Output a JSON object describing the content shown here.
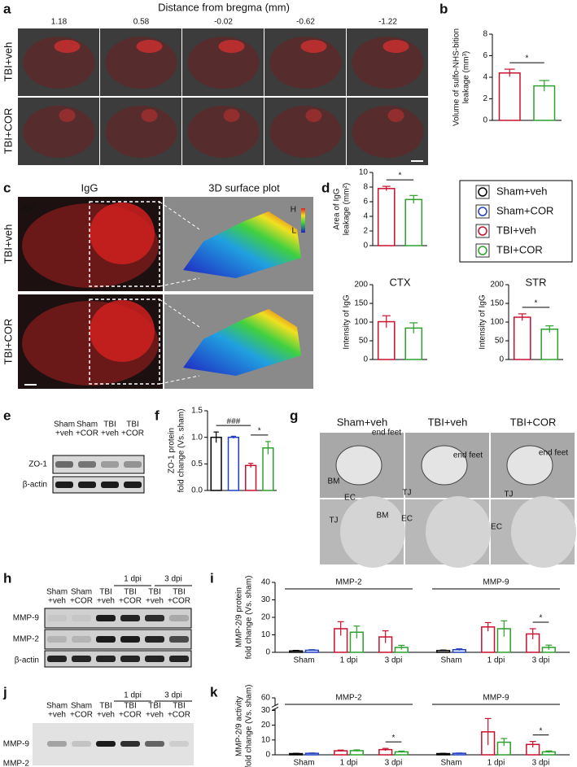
{
  "a": {
    "label": "a",
    "title": "Distance from bregma (mm)",
    "distances": [
      "1.18",
      "0.58",
      "-0.02",
      "-0.62",
      "-1.22"
    ],
    "rows": [
      "TBI+veh",
      "TBI+COR"
    ]
  },
  "b": {
    "label": "b",
    "chart_data": {
      "type": "bar",
      "ylabel": [
        "Volume of sulfo-NHS-bition",
        "leakage (mm³)"
      ],
      "ylim": [
        0,
        8
      ],
      "yticks": [
        0,
        2,
        4,
        6,
        8
      ],
      "values": [
        4.4,
        3.2
      ],
      "errors": [
        0.35,
        0.5
      ],
      "colors": [
        "#c8102e",
        "#2ca02c"
      ],
      "sig": [
        {
          "text": "*",
          "from": 0,
          "to": 1
        }
      ]
    }
  },
  "c": {
    "label": "c",
    "headers": [
      "IgG",
      "3D surface plot"
    ],
    "rows": [
      "TBI+veh",
      "TBI+COR"
    ],
    "stain": "IgG",
    "scale": [
      "H",
      "L"
    ]
  },
  "d": {
    "label": "d",
    "legend": {
      "names": [
        "Sham+veh",
        "Sham+COR",
        "TBI+veh",
        "TBI+COR"
      ],
      "colors": [
        "#000000",
        "#1f3fbf",
        "#c8102e",
        "#2ca02c"
      ]
    },
    "charts": [
      {
        "type": "bar",
        "ylabel": [
          "Area of IgG",
          "leakage (mm²)"
        ],
        "ylim": [
          0,
          10
        ],
        "yticks": [
          0,
          2,
          4,
          6,
          8,
          10
        ],
        "values": [
          7.8,
          6.3
        ],
        "errors": [
          0.3,
          0.55
        ],
        "colors": [
          "#c8102e",
          "#2ca02c"
        ],
        "sig": [
          {
            "text": "*",
            "from": 0,
            "to": 1
          }
        ]
      },
      {
        "type": "bar",
        "title": "CTX",
        "ylabel": [
          "Intensity of IgG"
        ],
        "ylim": [
          0,
          200
        ],
        "yticks": [
          0,
          50,
          100,
          150,
          200
        ],
        "values": [
          101,
          84
        ],
        "errors": [
          16,
          14
        ],
        "colors": [
          "#c8102e",
          "#2ca02c"
        ]
      },
      {
        "type": "bar",
        "title": "STR",
        "ylabel": [
          "Intensity of IgG"
        ],
        "ylim": [
          0,
          200
        ],
        "yticks": [
          0,
          50,
          100,
          150,
          200
        ],
        "values": [
          113,
          81
        ],
        "errors": [
          9,
          9
        ],
        "colors": [
          "#c8102e",
          "#2ca02c"
        ],
        "sig": [
          {
            "text": "*",
            "from": 0,
            "to": 1
          }
        ]
      }
    ]
  },
  "e": {
    "label": "e",
    "lanes": [
      [
        "Sham",
        "+veh"
      ],
      [
        "Sham",
        "+COR"
      ],
      [
        "TBI",
        "+veh"
      ],
      [
        "TBI",
        "+COR"
      ]
    ],
    "rows": [
      "ZO-1",
      "β-actin"
    ]
  },
  "f": {
    "label": "f",
    "chart_data": {
      "type": "bar",
      "ylabel": [
        "ZO-1 protein",
        "fold change (Vs. sham)"
      ],
      "ylim": [
        0,
        1.5
      ],
      "yticks": [
        {
          "value": 0,
          "label": "0.0"
        },
        0.5,
        {
          "value": 1,
          "label": "1.0"
        },
        1.5
      ],
      "values": [
        1.0,
        1.0,
        0.47,
        0.8
      ],
      "errors": [
        0.1,
        0.02,
        0.04,
        0.12
      ],
      "colors": [
        "#000000",
        "#1f3fbf",
        "#c8102e",
        "#2ca02c"
      ],
      "sig": [
        {
          "text": "###",
          "from": 0,
          "to": 2
        },
        {
          "text": "*",
          "from": 2,
          "to": 3
        }
      ]
    }
  },
  "g": {
    "label": "g",
    "columns": [
      "Sham+veh",
      "TBI+veh",
      "TBI+COR"
    ],
    "annotations": [
      [
        "end feet",
        "BM",
        "EC",
        "TJ"
      ],
      [
        "end feet",
        "TJ",
        "BM",
        "EC"
      ],
      [
        "end feet",
        "TJ",
        "EC"
      ]
    ]
  },
  "h": {
    "label": "h",
    "timepoints": [
      "1 dpi",
      "3 dpi"
    ],
    "lanes": [
      [
        "Sham",
        "+veh"
      ],
      [
        "Sham",
        "+COR"
      ],
      [
        "TBI",
        "+veh"
      ],
      [
        "TBI",
        "+COR"
      ],
      [
        "TBI",
        "+veh"
      ],
      [
        "TBI",
        "+COR"
      ]
    ],
    "rows": [
      "MMP-9",
      "MMP-2",
      "β-actin"
    ]
  },
  "i": {
    "label": "i",
    "chart_data": {
      "type": "grouped-bar",
      "ylabel": [
        "MMP-2/9 protein",
        "fold change (Vs. sham)"
      ],
      "ylim": [
        0,
        40
      ],
      "yticks": [
        0,
        10,
        20,
        30,
        40
      ],
      "colors": [
        "#000000",
        "#1f3fbf",
        "#c8102e",
        "#2ca02c",
        "#c8102e",
        "#2ca02c"
      ],
      "groups": [
        {
          "name": "MMP-2",
          "categories": [
            "Sham",
            "1 dpi",
            "3 dpi"
          ],
          "values": [
            0.8,
            1.2,
            13.5,
            11.5,
            8.8,
            2.8
          ],
          "errors": [
            0.3,
            0.3,
            4,
            3.5,
            3.5,
            1.2
          ]
        },
        {
          "name": "MMP-9",
          "categories": [
            "Sham",
            "1 dpi",
            "3 dpi"
          ],
          "values": [
            1.0,
            1.5,
            14.5,
            13.5,
            10.5,
            2.8
          ],
          "errors": [
            0.3,
            0.5,
            2.5,
            4.5,
            3,
            1.3
          ],
          "sig": [
            {
              "text": "*",
              "from": 4,
              "to": 5
            }
          ]
        }
      ]
    }
  },
  "j": {
    "label": "j",
    "timepoints": [
      "1 dpi",
      "3 dpi"
    ],
    "lanes": [
      [
        "Sham",
        "+veh"
      ],
      [
        "Sham",
        "+COR"
      ],
      [
        "TBI",
        "+veh"
      ],
      [
        "TBI",
        "+COR"
      ],
      [
        "TBI",
        "+veh"
      ],
      [
        "TBI",
        "+COR"
      ]
    ],
    "rows": [
      "MMP-9",
      "MMP-2"
    ]
  },
  "k": {
    "label": "k",
    "chart_data": {
      "type": "grouped-bar",
      "axis_break": true,
      "ylabel": [
        "MMP-2/9 activity",
        "fold change (Vs. sham)"
      ],
      "ylim": [
        0,
        60
      ],
      "yticks": [
        0,
        10,
        20,
        30,
        60
      ],
      "colors": [
        "#000000",
        "#1f3fbf",
        "#c8102e",
        "#2ca02c",
        "#c8102e",
        "#2ca02c"
      ],
      "groups": [
        {
          "name": "MMP-2",
          "categories": [
            "Sham",
            "1 dpi",
            "3 dpi"
          ],
          "values": [
            0.8,
            1.0,
            2.7,
            2.8,
            3.5,
            2.0
          ],
          "errors": [
            0.2,
            0.2,
            0.5,
            0.5,
            0.8,
            0.5
          ],
          "sig": [
            {
              "text": "*",
              "from": 4,
              "to": 5
            }
          ]
        },
        {
          "name": "MMP-9",
          "categories": [
            "Sham",
            "1 dpi",
            "3 dpi"
          ],
          "values": [
            0.8,
            1.0,
            15.5,
            8.5,
            7.0,
            2.0
          ],
          "errors": [
            0.2,
            0.2,
            9,
            2.5,
            2,
            0.6
          ],
          "sig": [
            {
              "text": "*",
              "from": 4,
              "to": 5
            }
          ]
        }
      ]
    }
  }
}
